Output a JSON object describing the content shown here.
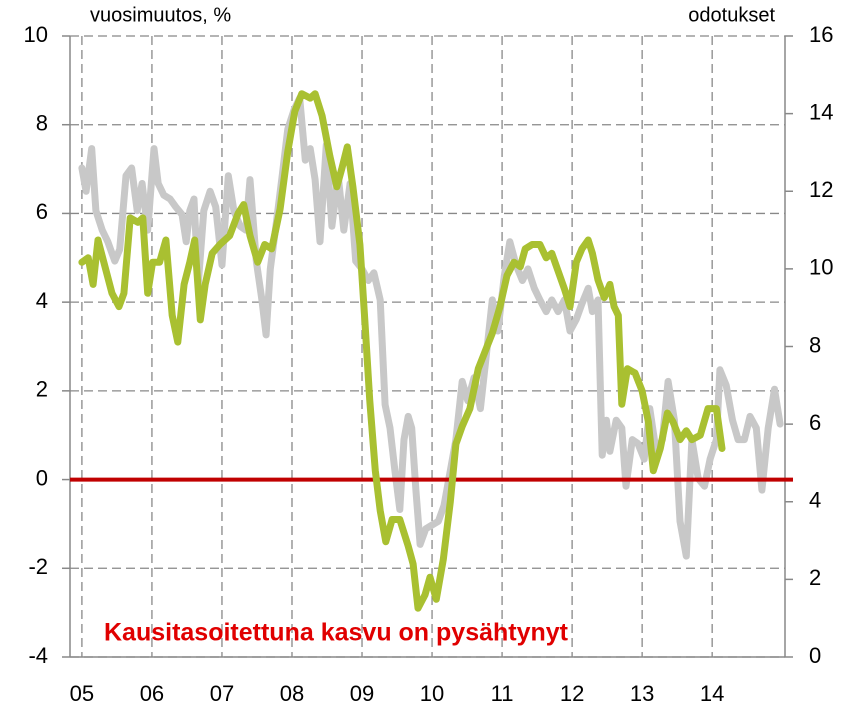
{
  "chart_data": {
    "type": "line",
    "y_label": "vuosimuutos, %",
    "y2_label": "odotukset",
    "annotation": "Kausitasoitettuna kasvu on pysähtynyt",
    "annotation_color": "#e00000",
    "zero_line_color": "#c00000",
    "xlim": [
      2004.83,
      2015.04
    ],
    "xticks": [
      {
        "value": 2005,
        "label": "05"
      },
      {
        "value": 2006,
        "label": "06"
      },
      {
        "value": 2007,
        "label": "07"
      },
      {
        "value": 2008,
        "label": "08"
      },
      {
        "value": 2009,
        "label": "09"
      },
      {
        "value": 2010,
        "label": "10"
      },
      {
        "value": 2011,
        "label": "11"
      },
      {
        "value": 2012,
        "label": "12"
      },
      {
        "value": 2013,
        "label": "13"
      },
      {
        "value": 2014,
        "label": "14"
      }
    ],
    "ylim": [
      -4,
      10
    ],
    "yticks": [
      -4,
      -2,
      0,
      2,
      4,
      6,
      8,
      10
    ],
    "y2lim": [
      0,
      16
    ],
    "y2ticks": [
      0,
      2,
      4,
      6,
      8,
      10,
      12,
      14,
      16
    ],
    "grid": true,
    "series": [
      {
        "name": "odotukset",
        "axis": "y2",
        "color": "#c8c8c8",
        "x": [
          2005.0,
          2005.06,
          2005.14,
          2005.2,
          2005.29,
          2005.37,
          2005.47,
          2005.54,
          2005.63,
          2005.71,
          2005.79,
          2005.86,
          2005.94,
          2006.03,
          2006.09,
          2006.17,
          2006.26,
          2006.34,
          2006.43,
          2006.49,
          2006.54,
          2006.6,
          2006.66,
          2006.74,
          2006.83,
          2006.91,
          2007.0,
          2007.09,
          2007.17,
          2007.26,
          2007.34,
          2007.4,
          2007.49,
          2007.57,
          2007.63,
          2007.69,
          2007.77,
          2007.86,
          2007.94,
          2008.03,
          2008.11,
          2008.19,
          2008.26,
          2008.33,
          2008.4,
          2008.49,
          2008.57,
          2008.66,
          2008.74,
          2008.83,
          2008.91,
          2009.0,
          2009.09,
          2009.17,
          2009.26,
          2009.33,
          2009.4,
          2009.47,
          2009.54,
          2009.6,
          2009.66,
          2009.71,
          2009.77,
          2009.83,
          2009.91,
          2010.0,
          2010.09,
          2010.17,
          2010.26,
          2010.34,
          2010.43,
          2010.51,
          2010.6,
          2010.69,
          2010.77,
          2010.86,
          2010.94,
          2011.03,
          2011.11,
          2011.2,
          2011.29,
          2011.37,
          2011.46,
          2011.54,
          2011.63,
          2011.71,
          2011.8,
          2011.89,
          2011.97,
          2012.06,
          2012.14,
          2012.23,
          2012.29,
          2012.37,
          2012.43,
          2012.49,
          2012.54,
          2012.63,
          2012.71,
          2012.77,
          2012.86,
          2012.94,
          2013.03,
          2013.11,
          2013.2,
          2013.29,
          2013.37,
          2013.46,
          2013.54,
          2013.63,
          2013.71,
          2013.8,
          2013.89,
          2013.97,
          2014.06,
          2014.11,
          2014.2,
          2014.29,
          2014.37,
          2014.46,
          2014.54,
          2014.63,
          2014.71,
          2014.8,
          2014.89,
          2014.97
        ],
        "values": [
          12.6,
          12.0,
          13.1,
          11.5,
          11.0,
          10.7,
          10.2,
          10.5,
          12.4,
          12.6,
          11.5,
          12.2,
          11.0,
          13.1,
          12.2,
          11.9,
          11.8,
          11.6,
          11.4,
          10.7,
          11.5,
          11.8,
          9.6,
          11.5,
          12.0,
          11.6,
          10.1,
          12.4,
          11.5,
          11.1,
          11.0,
          12.3,
          10.2,
          9.2,
          8.3,
          10.0,
          11.1,
          12.4,
          13.6,
          14.1,
          14.4,
          12.8,
          13.1,
          12.3,
          10.7,
          13.2,
          11.1,
          12.4,
          11.0,
          12.2,
          10.2,
          10.0,
          9.7,
          9.9,
          9.2,
          6.5,
          5.9,
          4.8,
          3.8,
          5.6,
          6.2,
          5.9,
          4.3,
          2.9,
          3.3,
          3.4,
          3.5,
          3.9,
          4.8,
          5.6,
          7.1,
          6.6,
          7.2,
          6.4,
          7.7,
          9.2,
          8.4,
          9.8,
          10.7,
          10.1,
          9.7,
          10.0,
          9.5,
          9.2,
          8.9,
          9.2,
          8.9,
          9.2,
          8.4,
          8.7,
          9.1,
          9.5,
          8.9,
          9.2,
          5.2,
          6.1,
          5.3,
          6.1,
          5.9,
          4.4,
          5.6,
          5.5,
          5.1,
          6.4,
          5.3,
          5.6,
          7.1,
          6.1,
          3.5,
          2.6,
          5.6,
          4.6,
          4.4,
          5.1,
          5.6,
          7.4,
          7.0,
          6.1,
          5.6,
          5.6,
          6.2,
          5.9,
          4.3,
          5.9,
          6.9,
          6.0
        ]
      },
      {
        "name": "vuosimuutos, %",
        "color": "#a9c031",
        "x": [
          2005.0,
          2005.09,
          2005.16,
          2005.23,
          2005.33,
          2005.43,
          2005.53,
          2005.6,
          2005.69,
          2005.8,
          2005.87,
          2005.94,
          2006.01,
          2006.11,
          2006.2,
          2006.29,
          2006.37,
          2006.46,
          2006.54,
          2006.61,
          2006.69,
          2006.76,
          2006.86,
          2006.97,
          2007.11,
          2007.23,
          2007.31,
          2007.4,
          2007.51,
          2007.61,
          2007.71,
          2007.83,
          2007.94,
          2008.04,
          2008.14,
          2008.26,
          2008.33,
          2008.43,
          2008.54,
          2008.64,
          2008.71,
          2008.79,
          2008.87,
          2008.97,
          2009.04,
          2009.11,
          2009.19,
          2009.26,
          2009.34,
          2009.43,
          2009.54,
          2009.66,
          2009.73,
          2009.8,
          2009.9,
          2009.97,
          2010.06,
          2010.16,
          2010.26,
          2010.34,
          2010.43,
          2010.54,
          2010.66,
          2010.76,
          2010.86,
          2010.97,
          2011.07,
          2011.17,
          2011.26,
          2011.33,
          2011.43,
          2011.54,
          2011.63,
          2011.71,
          2011.8,
          2011.89,
          2011.97,
          2012.06,
          2012.14,
          2012.23,
          2012.29,
          2012.37,
          2012.46,
          2012.54,
          2012.6,
          2012.66,
          2012.71,
          2012.79,
          2012.9,
          2013.0,
          2013.09,
          2013.16,
          2013.26,
          2013.36,
          2013.44,
          2013.54,
          2013.63,
          2013.71,
          2013.83,
          2013.94,
          2014.06,
          2014.14
        ],
        "values": [
          4.9,
          5.0,
          4.4,
          5.4,
          4.8,
          4.2,
          3.9,
          4.2,
          5.9,
          5.8,
          5.9,
          4.2,
          4.9,
          4.9,
          5.4,
          3.7,
          3.1,
          4.4,
          4.9,
          5.4,
          3.6,
          4.4,
          5.1,
          5.3,
          5.5,
          6.0,
          6.2,
          5.5,
          4.9,
          5.3,
          5.2,
          6.1,
          7.4,
          8.3,
          8.7,
          8.6,
          8.7,
          8.2,
          7.3,
          6.6,
          7.0,
          7.5,
          6.6,
          5.3,
          3.6,
          1.8,
          0.2,
          -0.7,
          -1.4,
          -0.9,
          -0.9,
          -1.5,
          -1.9,
          -2.9,
          -2.6,
          -2.2,
          -2.7,
          -1.8,
          -0.5,
          0.8,
          1.2,
          1.6,
          2.5,
          2.9,
          3.3,
          3.9,
          4.6,
          4.9,
          4.8,
          5.2,
          5.3,
          5.3,
          5.0,
          5.1,
          4.7,
          4.3,
          3.9,
          4.9,
          5.2,
          5.4,
          5.1,
          4.5,
          4.1,
          4.4,
          3.9,
          3.7,
          1.7,
          2.5,
          2.4,
          2.0,
          1.3,
          0.2,
          0.7,
          1.5,
          1.3,
          0.9,
          1.1,
          0.9,
          1.0,
          1.6,
          1.6,
          0.7
        ]
      }
    ]
  }
}
